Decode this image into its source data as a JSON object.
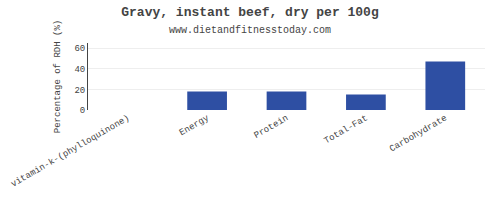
{
  "chart_data": {
    "type": "bar",
    "title": "Gravy, instant beef, dry per 100g",
    "subtitle": "www.dietandfitnesstoday.com",
    "categories": [
      "vitamin-k-(phylloquinone)",
      "Energy",
      "Protein",
      "Total-Fat",
      "Carbohydrate"
    ],
    "values": [
      0,
      18,
      18,
      15,
      47
    ],
    "color": "#2e4fa3",
    "ylabel": "Percentage of RDH (%)",
    "ylim": [
      0,
      65
    ],
    "yticks": [
      0,
      20,
      40,
      60
    ],
    "grid": true
  }
}
